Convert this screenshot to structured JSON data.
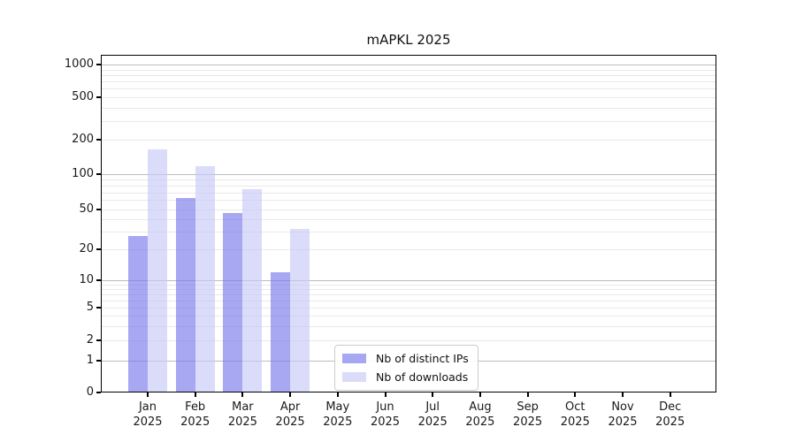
{
  "title": "mAPKL 2025",
  "legend": {
    "items": [
      {
        "label": "Nb of distinct IPs",
        "color": "rgba(120,120,235,0.65)"
      },
      {
        "label": "Nb of downloads",
        "color": "rgba(200,200,248,0.65)"
      }
    ]
  },
  "axes": {
    "y_tick_labels": [
      "0",
      "1",
      "2",
      "5",
      "10",
      "20",
      "50",
      "100",
      "200",
      "500",
      "1000"
    ],
    "x_tick_labels": [
      "Jan 2025",
      "Feb 2025",
      "Mar 2025",
      "Apr 2025",
      "May 2025",
      "Jun 2025",
      "Jul 2025",
      "Aug 2025",
      "Sep 2025",
      "Oct 2025",
      "Nov 2025",
      "Dec 2025"
    ]
  },
  "chart_data": {
    "type": "bar",
    "title": "mAPKL 2025",
    "categories": [
      "Jan 2025",
      "Feb 2025",
      "Mar 2025",
      "Apr 2025",
      "May 2025",
      "Jun 2025",
      "Jul 2025",
      "Aug 2025",
      "Sep 2025",
      "Oct 2025",
      "Nov 2025",
      "Dec 2025"
    ],
    "series": [
      {
        "name": "Nb of distinct IPs",
        "color": "rgba(120,120,235,0.65)",
        "values": [
          27,
          63,
          46,
          12,
          0,
          0,
          0,
          0,
          0,
          0,
          0,
          0
        ]
      },
      {
        "name": "Nb of downloads",
        "color": "rgba(200,200,248,0.65)",
        "values": [
          165,
          118,
          75,
          32,
          0,
          0,
          0,
          0,
          0,
          0,
          0,
          0
        ]
      }
    ],
    "yscale": "symlog",
    "yticks": [
      0,
      1,
      2,
      5,
      10,
      20,
      50,
      100,
      200,
      500,
      1000
    ],
    "minor_gridlines": [
      3,
      4,
      6,
      7,
      8,
      9,
      30,
      40,
      60,
      70,
      80,
      90,
      300,
      400,
      600,
      700,
      800,
      900
    ],
    "major_gridline_values": [
      1,
      10,
      100,
      1000
    ],
    "ylim": [
      0,
      1250
    ],
    "xlabel": "",
    "ylabel": "",
    "grid": "on",
    "legend_position": "lower center",
    "colors": {
      "major_grid": "#bdbdbd",
      "minor_grid": "#e9e9e9",
      "axis": "#000000",
      "background": "#ffffff"
    }
  }
}
